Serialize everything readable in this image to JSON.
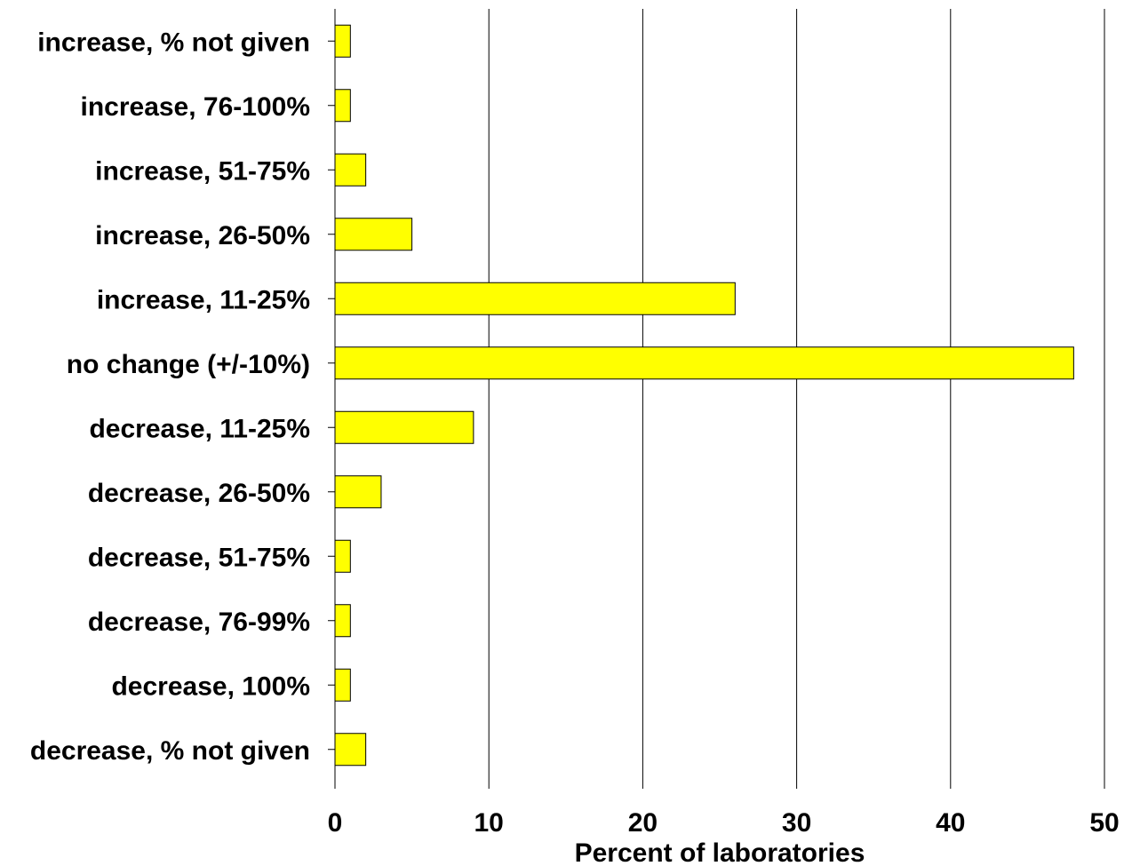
{
  "chart_data": {
    "type": "bar",
    "orientation": "horizontal",
    "categories": [
      "increase, % not given",
      "increase, 76-100%",
      "increase, 51-75%",
      "increase, 26-50%",
      "increase, 11-25%",
      "no change (+/-10%)",
      "decrease, 11-25%",
      "decrease, 26-50%",
      "decrease, 51-75%",
      "decrease, 76-99%",
      "decrease, 100%",
      "decrease, % not given"
    ],
    "values": [
      1,
      1,
      2,
      5,
      26,
      48,
      9,
      3,
      1,
      1,
      1,
      2
    ],
    "title": "",
    "xlabel": "Percent of laboratories",
    "ylabel": "",
    "xlim": [
      0,
      50
    ],
    "xticks": [
      0,
      10,
      20,
      30,
      40,
      50
    ],
    "grid": "vertical",
    "bar_color": "#ffff00",
    "bar_edge_color": "#000000"
  }
}
